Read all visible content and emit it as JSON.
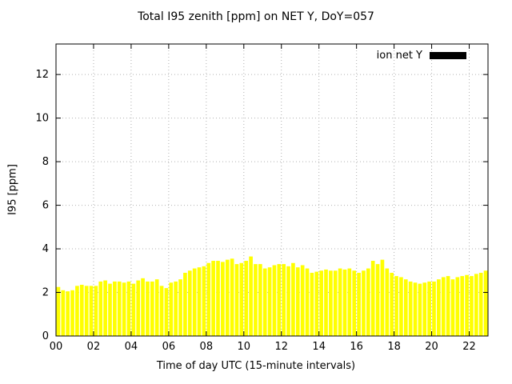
{
  "chart_data": {
    "type": "bar",
    "title": "Total I95 zenith [ppm] on NET Y, DoY=057",
    "xlabel": "Time of day UTC (15-minute intervals)",
    "ylabel": "I95 [ppm]",
    "legend": {
      "label": "ion net Y",
      "swatch_color": "#000000",
      "position": "top-right"
    },
    "bar_color": "#ffff00",
    "grid": true,
    "grid_color": "#b0b0b0",
    "interval_minutes": 15,
    "xlim": [
      0,
      23
    ],
    "ylim": [
      0,
      13.4
    ],
    "y_ticks": [
      0,
      2,
      4,
      6,
      8,
      10,
      12
    ],
    "x_tick_hours": [
      0,
      2,
      4,
      6,
      8,
      10,
      12,
      14,
      16,
      18,
      20,
      22
    ],
    "x_tick_labels": [
      "00",
      "02",
      "04",
      "06",
      "08",
      "10",
      "12",
      "14",
      "16",
      "18",
      "20",
      "22"
    ],
    "values": [
      2.25,
      2.1,
      2.05,
      2.1,
      2.3,
      2.35,
      2.3,
      2.3,
      2.3,
      2.5,
      2.55,
      2.4,
      2.5,
      2.5,
      2.45,
      2.5,
      2.4,
      2.55,
      2.65,
      2.5,
      2.5,
      2.6,
      2.3,
      2.2,
      2.45,
      2.5,
      2.6,
      2.9,
      3.0,
      3.1,
      3.15,
      3.2,
      3.35,
      3.45,
      3.45,
      3.4,
      3.5,
      3.55,
      3.3,
      3.35,
      3.45,
      3.65,
      3.3,
      3.3,
      3.1,
      3.15,
      3.25,
      3.3,
      3.3,
      3.2,
      3.35,
      3.15,
      3.25,
      3.1,
      2.9,
      2.95,
      3.0,
      3.05,
      3.0,
      3.0,
      3.1,
      3.05,
      3.1,
      3.0,
      2.9,
      3.0,
      3.1,
      3.45,
      3.3,
      3.5,
      3.1,
      2.9,
      2.75,
      2.7,
      2.6,
      2.5,
      2.45,
      2.4,
      2.45,
      2.5,
      2.5,
      2.6,
      2.7,
      2.75,
      2.6,
      2.7,
      2.75,
      2.8,
      2.75,
      2.85,
      2.9,
      3.0
    ]
  }
}
